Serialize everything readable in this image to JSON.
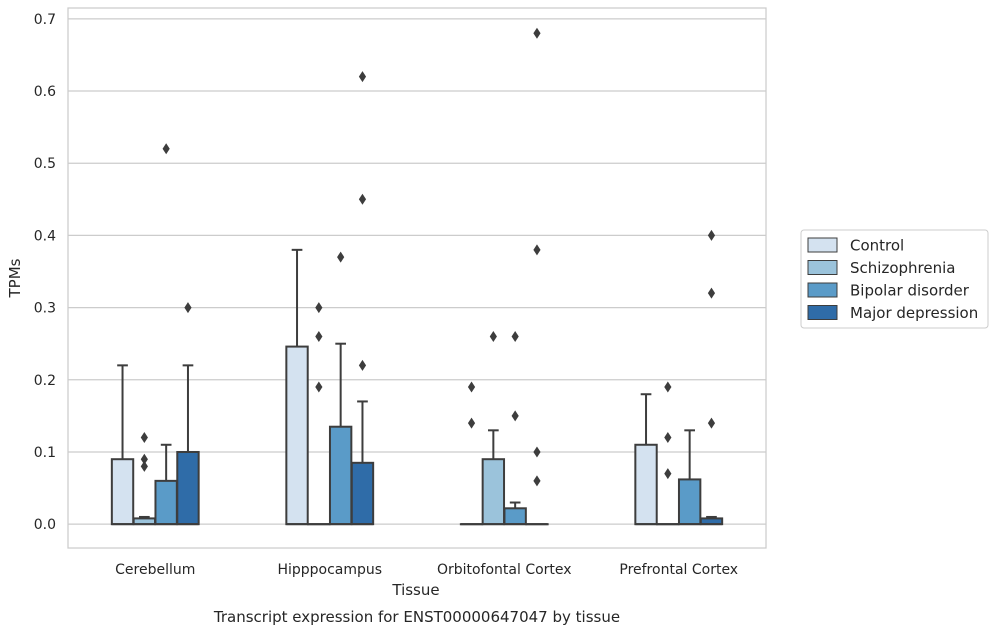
{
  "chart_data": {
    "type": "bar",
    "title": "",
    "xlabel": "Tissue",
    "ylabel": "TPMs",
    "caption": "Transcript expression for ENST00000647047 by tissue",
    "ylim": [
      -0.033,
      0.715
    ],
    "yticks": [
      "0.0",
      "0.1",
      "0.2",
      "0.3",
      "0.4",
      "0.5",
      "0.6",
      "0.7"
    ],
    "categories": [
      "Cerebellum",
      "Hipppocampus",
      "Orbitofontal Cortex",
      "Prefrontal Cortex"
    ],
    "grid": "horizontal",
    "legend_position": "right",
    "series": [
      {
        "name": "Control",
        "color": "#d4e2f0",
        "boxes": [
          {
            "q1": 0.0,
            "q3": 0.09,
            "median": 0.0,
            "whisker_low": 0.0,
            "whisker_high": 0.22,
            "outliers": []
          },
          {
            "q1": 0.0,
            "q3": 0.246,
            "median": 0.0,
            "whisker_low": 0.0,
            "whisker_high": 0.38,
            "outliers": []
          },
          {
            "q1": 0.0,
            "q3": 0.0,
            "median": 0.0,
            "whisker_low": 0.0,
            "whisker_high": 0.0,
            "outliers": [
              0.19,
              0.14
            ]
          },
          {
            "q1": 0.0,
            "q3": 0.11,
            "median": 0.0,
            "whisker_low": 0.0,
            "whisker_high": 0.18,
            "outliers": []
          }
        ]
      },
      {
        "name": "Schizophrenia",
        "color": "#9bc3db",
        "boxes": [
          {
            "q1": 0.0,
            "q3": 0.008,
            "median": 0.0,
            "whisker_low": 0.0,
            "whisker_high": 0.01,
            "outliers": [
              0.12,
              0.09,
              0.08
            ]
          },
          {
            "q1": 0.0,
            "q3": 0.0,
            "median": 0.0,
            "whisker_low": 0.0,
            "whisker_high": 0.0,
            "outliers": [
              0.3,
              0.26,
              0.19
            ]
          },
          {
            "q1": 0.0,
            "q3": 0.09,
            "median": 0.0,
            "whisker_low": 0.0,
            "whisker_high": 0.13,
            "outliers": [
              0.26
            ]
          },
          {
            "q1": 0.0,
            "q3": 0.0,
            "median": 0.0,
            "whisker_low": 0.0,
            "whisker_high": 0.0,
            "outliers": [
              0.19,
              0.12,
              0.07
            ]
          }
        ]
      },
      {
        "name": "Bipolar disorder",
        "color": "#5a9bc8",
        "boxes": [
          {
            "q1": 0.0,
            "q3": 0.06,
            "median": 0.0,
            "whisker_low": 0.0,
            "whisker_high": 0.11,
            "outliers": [
              0.52
            ]
          },
          {
            "q1": 0.0,
            "q3": 0.135,
            "median": 0.0,
            "whisker_low": 0.0,
            "whisker_high": 0.25,
            "outliers": [
              0.37
            ]
          },
          {
            "q1": 0.0,
            "q3": 0.022,
            "median": 0.0,
            "whisker_low": 0.0,
            "whisker_high": 0.03,
            "outliers": [
              0.26,
              0.15
            ]
          },
          {
            "q1": 0.0,
            "q3": 0.062,
            "median": 0.0,
            "whisker_low": 0.0,
            "whisker_high": 0.13,
            "outliers": []
          }
        ]
      },
      {
        "name": "Major depression",
        "color": "#2f6ca8",
        "boxes": [
          {
            "q1": 0.0,
            "q3": 0.1,
            "median": 0.0,
            "whisker_low": 0.0,
            "whisker_high": 0.22,
            "outliers": [
              0.3
            ]
          },
          {
            "q1": 0.0,
            "q3": 0.085,
            "median": 0.0,
            "whisker_low": 0.0,
            "whisker_high": 0.17,
            "outliers": [
              0.62,
              0.45,
              0.22
            ]
          },
          {
            "q1": 0.0,
            "q3": 0.0,
            "median": 0.0,
            "whisker_low": 0.0,
            "whisker_high": 0.0,
            "outliers": [
              0.68,
              0.38,
              0.1,
              0.06
            ]
          },
          {
            "q1": 0.0,
            "q3": 0.008,
            "median": 0.0,
            "whisker_low": 0.0,
            "whisker_high": 0.01,
            "outliers": [
              0.4,
              0.32,
              0.14
            ]
          }
        ]
      }
    ]
  }
}
